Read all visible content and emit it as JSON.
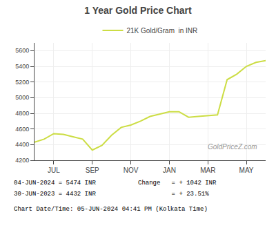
{
  "chart_data": {
    "type": "line",
    "title": "1 Year Gold Price Chart",
    "x": [
      0,
      0.5,
      1,
      1.5,
      2,
      2.5,
      3,
      3.5,
      4,
      4.5,
      5,
      5.5,
      6,
      6.5,
      7,
      7.5,
      8,
      8.5,
      9,
      9.5,
      10,
      10.5,
      11,
      11.5,
      12
    ],
    "series": [
      {
        "name": "21K Gold/Gram  in INR",
        "color": "#ccdd44",
        "values": [
          4432,
          4470,
          4540,
          4530,
          4500,
          4470,
          4330,
          4390,
          4520,
          4620,
          4650,
          4700,
          4760,
          4790,
          4820,
          4820,
          4750,
          4760,
          4770,
          4780,
          5230,
          5300,
          5400,
          5450,
          5474
        ]
      }
    ],
    "xlim": [
      0,
      12
    ],
    "xticks": [
      {
        "value": 1,
        "label": "JUL"
      },
      {
        "value": 3,
        "label": "SEP"
      },
      {
        "value": 5,
        "label": "NOV"
      },
      {
        "value": 7,
        "label": "JAN"
      },
      {
        "value": 9,
        "label": "MAR"
      },
      {
        "value": 11,
        "label": "MAY"
      }
    ],
    "ylim": [
      4200,
      5700
    ],
    "yticks": [
      4200,
      4400,
      4600,
      4800,
      5000,
      5200,
      5400,
      5600
    ],
    "grid": true,
    "legend": "top",
    "annotations": [
      "GoldPriceZ.com",
      "04-JUN-2024 = 5474 INR",
      "30-JUN-2023 = 4432 INR",
      "Change   = + 1042 INR",
      "         = + 23.51%",
      "Chart Date/Time: 05-JUN-2024 04:41 PM (Kolkata Time)"
    ]
  }
}
